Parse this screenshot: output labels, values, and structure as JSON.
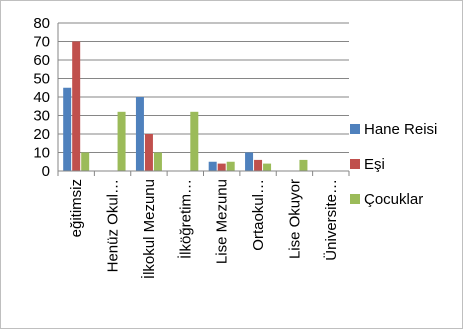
{
  "chart_data": {
    "type": "bar",
    "categories": [
      "eğitimsiz",
      "Henüz Okul…",
      "İlkokul Mezunu",
      "İlköğretim…",
      "Lise Mezunu",
      "Ortaokul…",
      "Lise Okuyor",
      "Üniversite…"
    ],
    "series": [
      {
        "name": "Hane Reisi",
        "color": "#4f81bd",
        "values": [
          45,
          0,
          40,
          0,
          5,
          10,
          0,
          0
        ]
      },
      {
        "name": "Eşi",
        "color": "#c0504d",
        "values": [
          70,
          0,
          20,
          0,
          4,
          6,
          0,
          0
        ]
      },
      {
        "name": "Çocuklar",
        "color": "#9bbb59",
        "values": [
          10,
          32,
          10,
          32,
          5,
          4,
          6,
          0
        ]
      }
    ],
    "yticks": [
      0,
      10,
      20,
      30,
      40,
      50,
      60,
      70,
      80
    ],
    "ylim": [
      0,
      80
    ],
    "grid": true,
    "legend_position": "right",
    "title": "",
    "xlabel": "",
    "ylabel": ""
  }
}
